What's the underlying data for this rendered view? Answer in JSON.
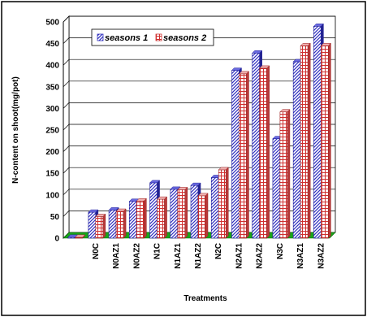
{
  "chart_data": {
    "type": "bar",
    "xlabel": "Treatments",
    "ylabel": "N-content on shoot(mg/pot)",
    "ylim": [
      0,
      500
    ],
    "yticks": [
      0,
      50,
      100,
      150,
      200,
      250,
      300,
      350,
      400,
      450,
      500
    ],
    "grid": true,
    "legend_position": "top-center",
    "categories": [
      "",
      "N0C",
      "N0AZ1",
      "N0AZ2",
      "N1C",
      "N1AZ1",
      "N1AZ2",
      "N2C",
      "N2AZ1",
      "N2AZ2",
      "N3C",
      "N3AZ1",
      "N3AZ2"
    ],
    "series": [
      {
        "name": "seasons 1",
        "color": "#3333cc",
        "pattern": "diagonal-hatch",
        "values": [
          2,
          60,
          65,
          85,
          128,
          113,
          122,
          140,
          388,
          428,
          230,
          408,
          490
        ]
      },
      {
        "name": "seasons 2",
        "color": "#cc3333",
        "pattern": "grid-hatch",
        "values": [
          2,
          50,
          62,
          86,
          90,
          112,
          98,
          158,
          380,
          393,
          292,
          445,
          445
        ]
      }
    ],
    "floor_color": "#1aa51a"
  }
}
